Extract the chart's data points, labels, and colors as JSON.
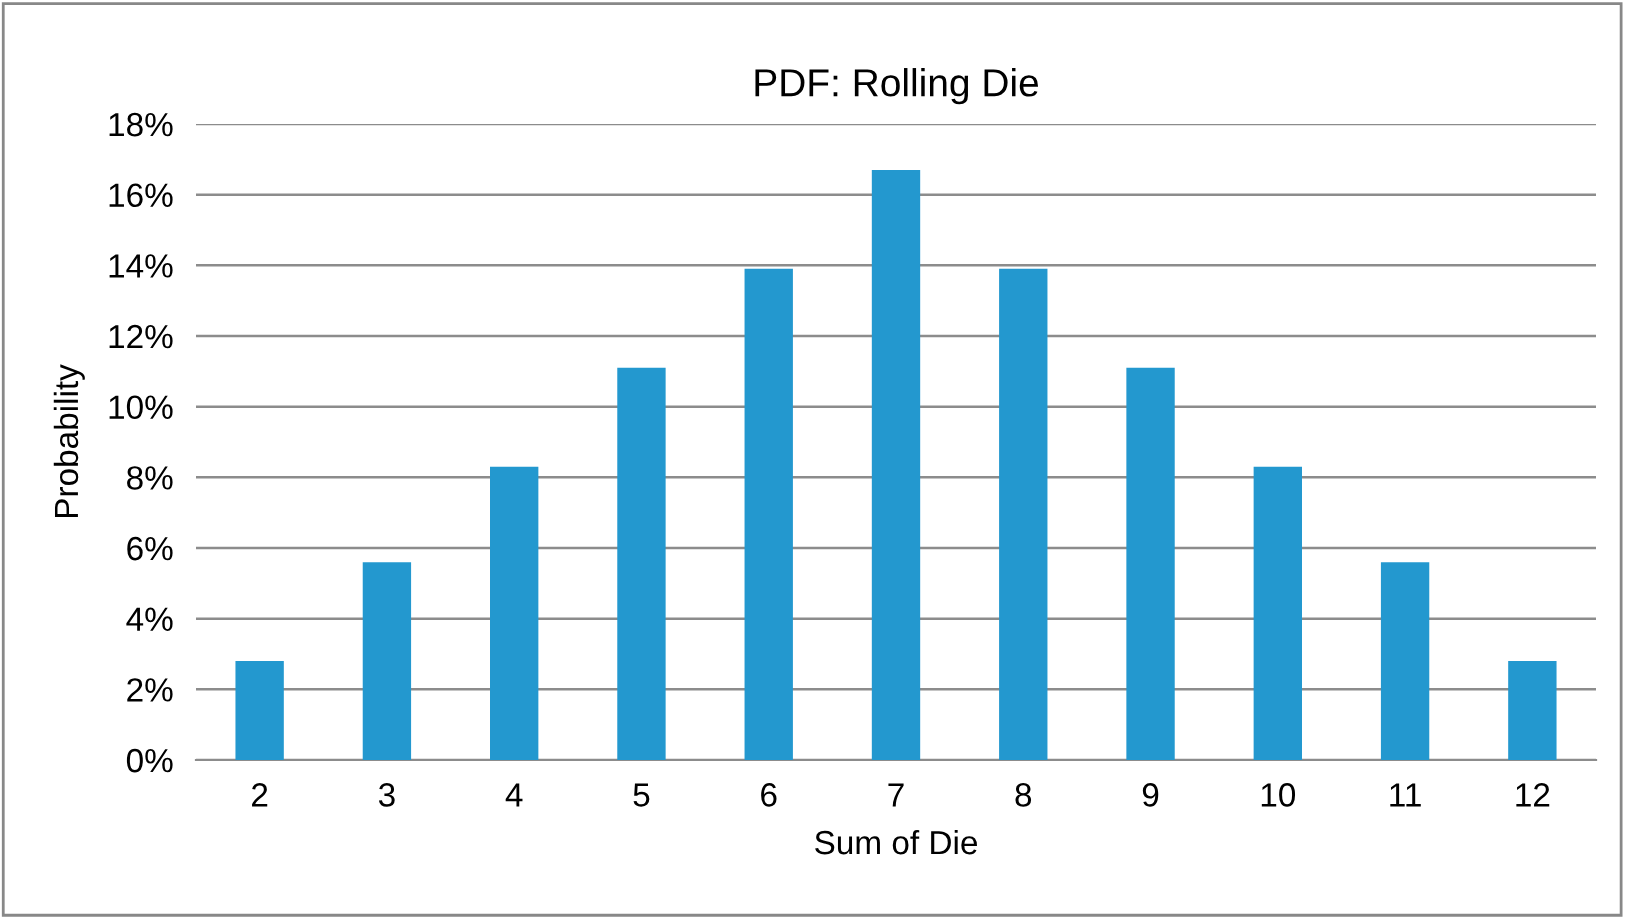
{
  "chart_data": {
    "type": "bar",
    "title": "PDF: Rolling Die",
    "xlabel": "Sum of Die",
    "ylabel": "Probability",
    "categories": [
      "2",
      "3",
      "4",
      "5",
      "6",
      "7",
      "8",
      "9",
      "10",
      "11",
      "12"
    ],
    "values": [
      2.8,
      5.6,
      8.3,
      11.1,
      13.9,
      16.7,
      13.9,
      11.1,
      8.3,
      5.6,
      2.8
    ],
    "color": "#2398cf",
    "ylim": [
      0,
      18
    ],
    "yticks": [
      {
        "value": 0,
        "label": "0%"
      },
      {
        "value": 2,
        "label": "2%"
      },
      {
        "value": 4,
        "label": "4%"
      },
      {
        "value": 6,
        "label": "6%"
      },
      {
        "value": 8,
        "label": "8%"
      },
      {
        "value": 10,
        "label": "10%"
      },
      {
        "value": 12,
        "label": "12%"
      },
      {
        "value": 14,
        "label": "14%"
      },
      {
        "value": 16,
        "label": "16%"
      },
      {
        "value": 18,
        "label": "18%"
      }
    ],
    "grid": "y",
    "legend": false
  }
}
